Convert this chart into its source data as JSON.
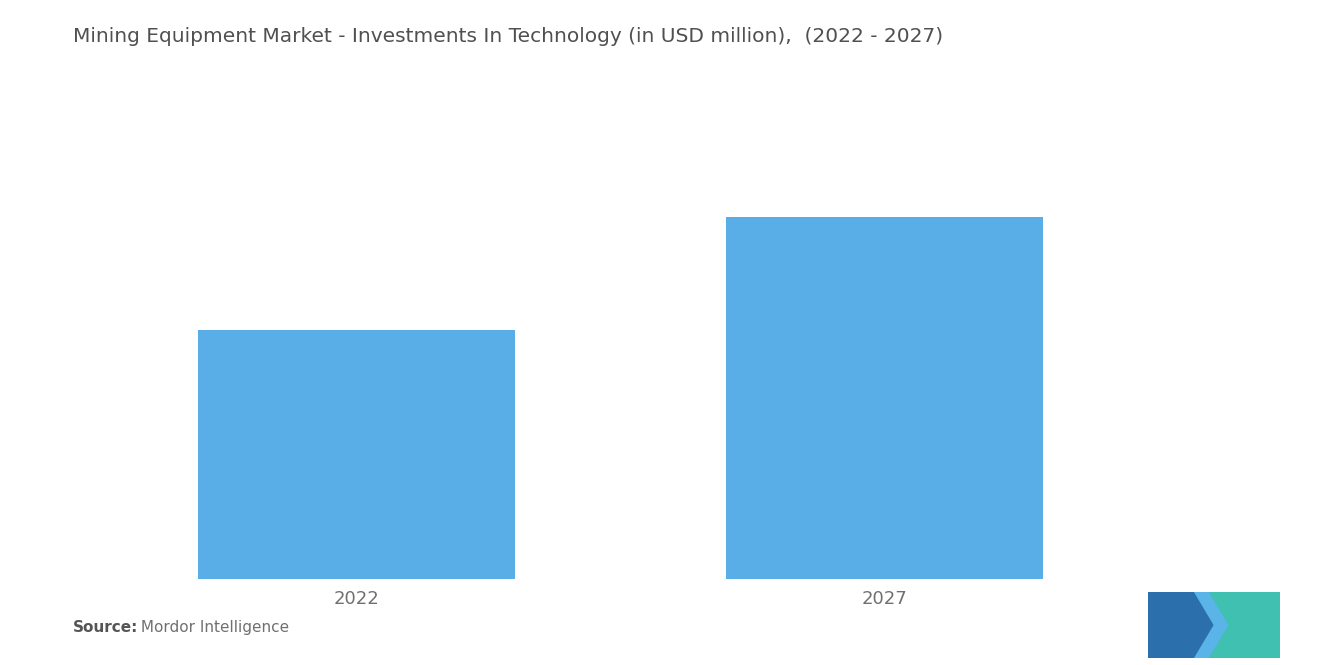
{
  "title": "Mining Equipment Market - Investments In Technology (in USD million),  (2022 - 2027)",
  "categories": [
    "2022",
    "2027"
  ],
  "values": [
    55,
    80
  ],
  "bar_color": "#5aaee8",
  "background_color": "#ffffff",
  "title_fontsize": 14.5,
  "tick_fontsize": 13,
  "source_bold": "Source:",
  "source_text": " Mordor Intelligence",
  "source_fontsize": 11,
  "ylim": [
    0,
    100
  ],
  "x_positions": [
    1,
    2
  ],
  "bar_width": 0.6,
  "xlim": [
    0.5,
    2.7
  ]
}
